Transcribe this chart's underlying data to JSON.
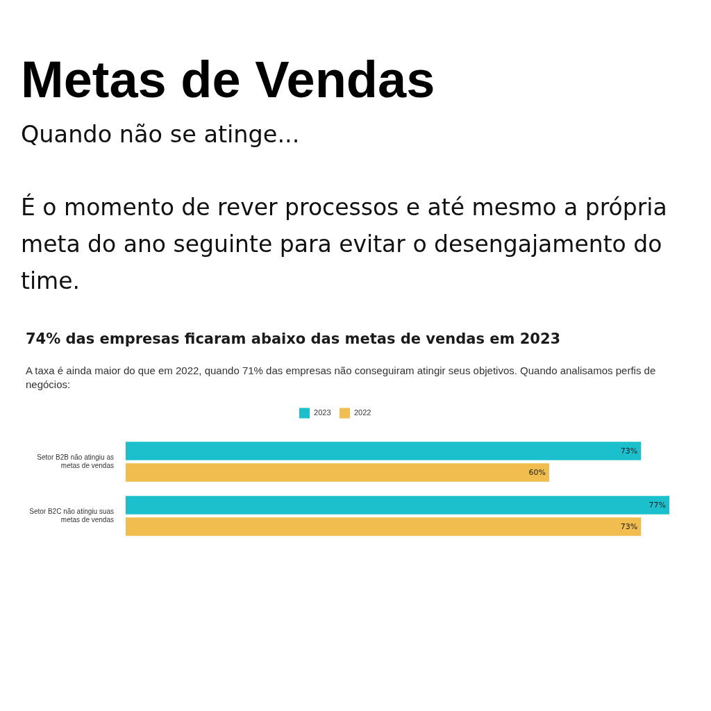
{
  "chart_data": {
    "type": "bar",
    "orientation": "horizontal",
    "title": "Metas de Vendas",
    "subtitle": "Quando não se atinge...",
    "annotations": [
      "É o momento de rever processos e até mesmo a própria meta do ano seguinte para evitar o desengajamento do time.",
      "74% das empresas ficaram abaixo das metas de vendas em 2023",
      "A taxa é ainda maior do que em 2022, quando 71% das empresas não conseguiram atingir seus objetivos. Quando analisamos perfis de negócios:"
    ],
    "categories": [
      "Setor B2B não atingiu as metas de vendas",
      "Setor B2C não atingiu suas metas de vendas"
    ],
    "series": [
      {
        "name": "2023",
        "color": "#1bc0cc",
        "values": [
          73,
          77
        ],
        "value_labels": [
          "73%",
          "77%"
        ]
      },
      {
        "name": "2022",
        "color": "#f0bd4e",
        "values": [
          60,
          73
        ],
        "value_labels": [
          "60%",
          "73%"
        ]
      }
    ],
    "xlim": [
      0,
      77
    ],
    "grid": false,
    "legend": "top",
    "tick_labels": "y"
  }
}
